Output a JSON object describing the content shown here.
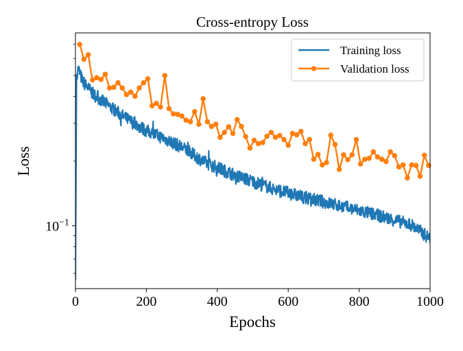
{
  "chart_data": {
    "type": "line",
    "title": "Cross-entropy Loss",
    "xlabel": "Epochs",
    "ylabel": "Loss",
    "xlim": [
      0,
      1000
    ],
    "ylim": [
      0.051,
      0.79
    ],
    "yscale": "log",
    "x_ticks": [
      "0",
      "200",
      "400",
      "600",
      "800",
      "1000"
    ],
    "x_tick_values": [
      0,
      200,
      400,
      600,
      800,
      1000
    ],
    "y_ticks": [
      {
        "value": 0.1,
        "base": "10",
        "exponent": "−1"
      }
    ],
    "grid": false,
    "legend_position": "top-right",
    "series": [
      {
        "name": "Training loss",
        "color": "#1f77b4",
        "marker": "none",
        "trend": {
          "x": [
            0,
            3,
            8,
            20,
            50,
            100,
            150,
            200,
            250,
            300,
            366,
            450,
            560,
            650,
            754,
            850,
            948,
            1000
          ],
          "y": [
            0.056,
            0.5,
            0.54,
            0.47,
            0.41,
            0.355,
            0.31,
            0.277,
            0.255,
            0.232,
            0.197,
            0.172,
            0.148,
            0.135,
            0.123,
            0.112,
            0.101,
            0.087
          ]
        }
      },
      {
        "name": "Validation loss",
        "color": "#ff7f0e",
        "marker": "circle",
        "x_step": 12,
        "y": [
          0.698,
          0.595,
          0.625,
          0.477,
          0.489,
          0.48,
          0.507,
          0.438,
          0.441,
          0.463,
          0.438,
          0.408,
          0.419,
          0.401,
          0.438,
          0.463,
          0.483,
          0.362,
          0.371,
          0.357,
          0.5,
          0.351,
          0.332,
          0.33,
          0.324,
          0.31,
          0.305,
          0.34,
          0.297,
          0.39,
          0.305,
          0.29,
          0.297,
          0.258,
          0.272,
          0.289,
          0.269,
          0.312,
          0.29,
          0.26,
          0.23,
          0.25,
          0.241,
          0.244,
          0.261,
          0.272,
          0.258,
          0.263,
          0.252,
          0.237,
          0.269,
          0.265,
          0.275,
          0.241,
          0.252,
          0.204,
          0.215,
          0.192,
          0.197,
          0.264,
          0.239,
          0.183,
          0.214,
          0.203,
          0.214,
          0.252,
          0.194,
          0.204,
          0.206,
          0.221,
          0.209,
          0.204,
          0.199,
          0.221,
          0.212,
          0.188,
          0.192,
          0.167,
          0.192,
          0.191,
          0.17,
          0.213,
          0.191
        ]
      }
    ]
  }
}
